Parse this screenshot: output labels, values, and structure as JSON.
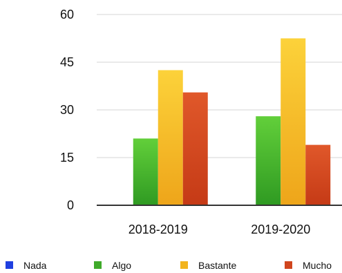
{
  "chart_data": {
    "type": "bar",
    "title": "",
    "xlabel": "",
    "ylabel": "",
    "categories": [
      "2018-2019",
      "2019-2020"
    ],
    "ylim": [
      0,
      60
    ],
    "yticks": [
      0,
      15,
      30,
      45,
      60
    ],
    "grid": true,
    "legend_position": "bottom",
    "series": [
      {
        "name": "Nada",
        "values": [
          0,
          0
        ],
        "color": "#1f3fe0"
      },
      {
        "name": "Algo",
        "values": [
          21,
          28
        ],
        "color": "#3faa2a"
      },
      {
        "name": "Bastante",
        "values": [
          42.5,
          52.5
        ],
        "color": "#f2b41e"
      },
      {
        "name": "Mucho",
        "values": [
          35.5,
          19
        ],
        "color": "#d0451e"
      }
    ]
  }
}
